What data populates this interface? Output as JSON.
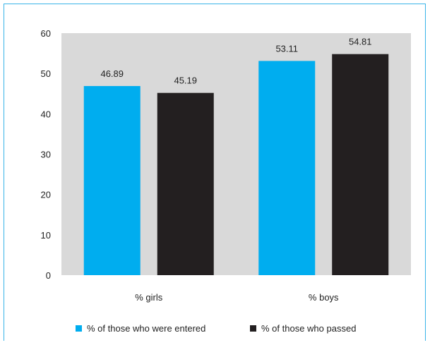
{
  "chart_data": {
    "type": "bar",
    "categories": [
      "% girls",
      "% boys"
    ],
    "series": [
      {
        "name": "% of those who were entered",
        "values": [
          46.89,
          53.11
        ],
        "labels": [
          "46.89",
          "53.11"
        ],
        "color": "#00adef"
      },
      {
        "name": "% of those who passed",
        "values": [
          45.19,
          54.81
        ],
        "labels": [
          "45.19",
          "54.81"
        ],
        "color": "#231f20"
      }
    ],
    "ylim": [
      0,
      60
    ],
    "yticks": [
      "0",
      "10",
      "20",
      "30",
      "40",
      "50",
      "60"
    ],
    "plot_background": "#d9d9d9",
    "frame_color": "#38b4e8",
    "legend_position": "bottom",
    "grid": false
  }
}
